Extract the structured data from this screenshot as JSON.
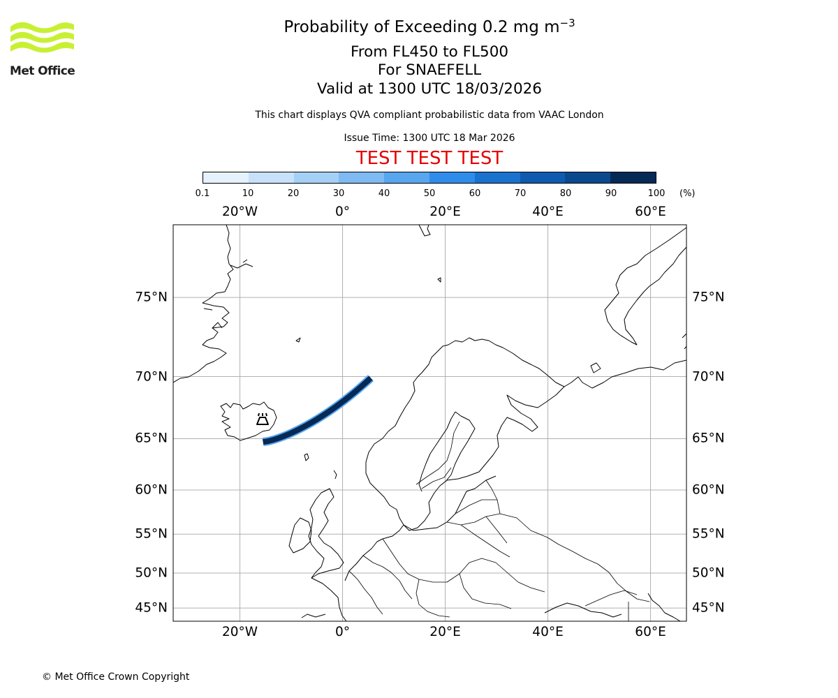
{
  "logo": {
    "text": "Met Office",
    "color": "#c8f033"
  },
  "title": {
    "main_prefix": "Probability of Exceeding 0.2 mg m",
    "main_exponent": "−3",
    "levels": "From FL450 to FL500",
    "volcano": "For SNAEFELL",
    "valid": "Valid at 1300 UTC 18/03/2026"
  },
  "disclaimer": "This chart displays QVA compliant probabilistic data from VAAC London",
  "issue_time": "Issue Time: 1300 UTC 18 Mar 2026",
  "test_banner": "TEST TEST TEST",
  "colorbar": {
    "ticks": [
      "0.1",
      "10",
      "20",
      "30",
      "40",
      "50",
      "60",
      "70",
      "80",
      "90",
      "100"
    ],
    "unit": "(%)",
    "colors": [
      "#e5f1fd",
      "#c6e1f9",
      "#a5d0f6",
      "#7fbaf2",
      "#58a6ee",
      "#2f8cea",
      "#1a72cf",
      "#0e5bb0",
      "#094a8f",
      "#052a55"
    ]
  },
  "map": {
    "lon_labels": [
      "20°W",
      "0°",
      "20°E",
      "40°E",
      "60°E"
    ],
    "lat_labels": [
      "75°N",
      "70°N",
      "65°N",
      "60°N",
      "55°N",
      "50°N",
      "45°N"
    ],
    "extent": {
      "lon_min": -33,
      "lon_max": 67,
      "lat_min": 43,
      "lat_max": 78.5
    },
    "gridline_color": "#b0b0b0",
    "ash_plume_color": "#052a55",
    "volcano": "SNAEFELL"
  },
  "copyright": "© Met Office Crown Copyright"
}
